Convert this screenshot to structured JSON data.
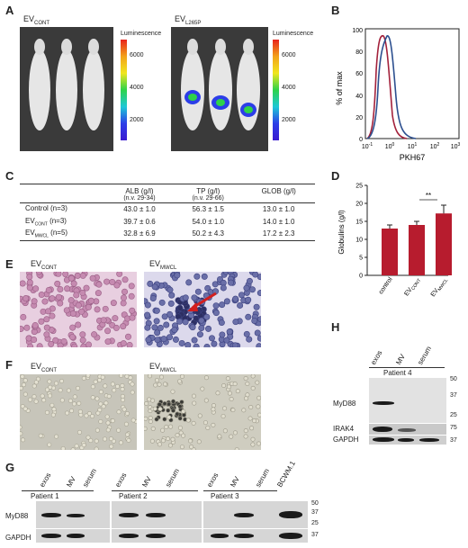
{
  "panels": {
    "A": "A",
    "B": "B",
    "C": "C",
    "D": "D",
    "E": "E",
    "F": "F",
    "G": "G",
    "H": "H"
  },
  "panel_a": {
    "left_title_base": "EV",
    "left_title_sub": "CONT",
    "right_title_base": "EV",
    "right_title_sub": "L265P",
    "colorbar_label": "Luminescence",
    "colorbar_ticks": [
      "6000",
      "4000",
      "2000"
    ]
  },
  "panel_b": {
    "ylabel": "% of max",
    "xlabel": "PKH67",
    "yticks": [
      "0",
      "20",
      "40",
      "60",
      "80",
      "100"
    ],
    "xticks_base": [
      "10",
      "10",
      "10",
      "10",
      "10"
    ],
    "xticks_exp": [
      "-1",
      "0",
      "1",
      "2",
      "3"
    ],
    "colors": {
      "blue": "#2c4f8f",
      "red": "#a3213b"
    }
  },
  "panel_c": {
    "headers": [
      {
        "l1": "ALB (g/l)",
        "l2": "(n.v. 29-34)"
      },
      {
        "l1": "TP (g/l)",
        "l2": "(n.v. 29-66)"
      },
      {
        "l1": "GLOB (g/l)",
        "l2": ""
      }
    ],
    "rows": [
      {
        "base": "Control (n=3)",
        "sub": "",
        "suffix": "",
        "v": [
          "43.0 ± 1.0",
          "56.3 ± 1.5",
          "13.0 ± 1.0"
        ]
      },
      {
        "base": "EV",
        "sub": "CONT",
        "suffix": " (n=3)",
        "v": [
          "39.7 ± 0.6",
          "54.0 ± 1.0",
          "14.0 ± 1.0"
        ]
      },
      {
        "base": "EV",
        "sub": "MWCL",
        "suffix": " (n=5)",
        "v": [
          "32.8 ± 6.9",
          "50.2 ± 4.3",
          "17.2 ± 2.3"
        ]
      }
    ]
  },
  "chart_data": {
    "type": "bar",
    "categories": [
      "control",
      "EV_CONT",
      "EV_MWCL"
    ],
    "cat_base": [
      "control",
      "EV",
      "EV"
    ],
    "cat_sub": [
      "",
      "CONT",
      "MWCL"
    ],
    "values": [
      13.0,
      14.0,
      17.2
    ],
    "errors": [
      1.0,
      1.0,
      2.3
    ],
    "ylabel": "Globulins (g/l)",
    "ylim": [
      0,
      25
    ],
    "yticks": [
      "0",
      "5",
      "10",
      "15",
      "20",
      "25"
    ],
    "significance": "**",
    "bar_color": "#b71c2e"
  },
  "panel_e": {
    "left_base": "EV",
    "left_sub": "CONT",
    "right_base": "EV",
    "right_sub": "MWCL"
  },
  "panel_f": {
    "left_base": "EV",
    "left_sub": "CONT",
    "right_base": "EV",
    "right_sub": "MWCL"
  },
  "panel_g": {
    "lanes": [
      "exos",
      "MV",
      "serum",
      "exos",
      "MV",
      "serum",
      "exos",
      "MV",
      "serum",
      "BCWM.1"
    ],
    "patients": [
      "Patient 1",
      "Patient 2",
      "Patient 3"
    ],
    "row_labels": [
      "MyD88",
      "GAPDH"
    ],
    "mw": [
      "50",
      "37",
      "25",
      "37"
    ]
  },
  "panel_h": {
    "lanes": [
      "exos",
      "MV",
      "serum"
    ],
    "patient": "Patient 4",
    "row_labels": [
      "MyD88",
      "IRAK4",
      "GAPDH"
    ],
    "mw": [
      "50",
      "37",
      "25",
      "75",
      "37"
    ]
  }
}
